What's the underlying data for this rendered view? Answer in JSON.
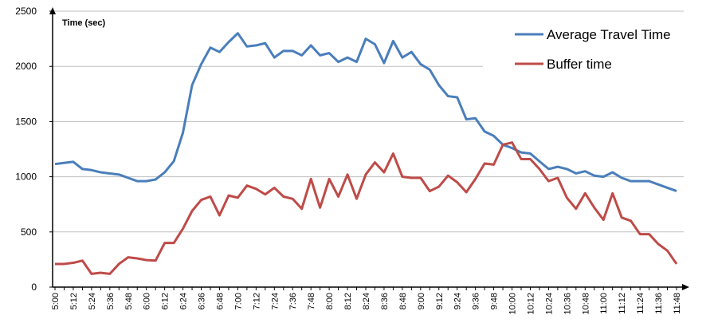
{
  "chart_data": {
    "type": "line",
    "y_label": "Time (sec)",
    "categories": [
      "5:00",
      null,
      "5:12",
      null,
      "5:24",
      null,
      "5:36",
      null,
      "5:48",
      null,
      "6:00",
      null,
      "6:12",
      null,
      "6:24",
      null,
      "6:36",
      null,
      "6:48",
      null,
      "7:00",
      null,
      "7:12",
      null,
      "7:24",
      null,
      "7:36",
      null,
      "7:48",
      null,
      "8:00",
      null,
      "8:12",
      null,
      "8:24",
      null,
      "8:36",
      null,
      "8:48",
      null,
      "9:00",
      null,
      "9:12",
      null,
      "9:24",
      null,
      "9:36",
      null,
      "9:48",
      null,
      "10:00",
      null,
      "10:12",
      null,
      "10:24",
      null,
      "10:36",
      null,
      "10:48",
      null,
      "11:00",
      null,
      "11:12",
      null,
      "11:24",
      null,
      "11:36",
      null,
      "11:48"
    ],
    "series": [
      {
        "name": "Average Travel Time",
        "color": "#4a7ebb",
        "values": [
          1115,
          1125,
          1135,
          1070,
          1060,
          1040,
          1030,
          1020,
          990,
          960,
          960,
          975,
          1040,
          1140,
          1400,
          1830,
          2020,
          2170,
          2130,
          2220,
          2300,
          2180,
          2190,
          2210,
          2080,
          2140,
          2140,
          2100,
          2190,
          2100,
          2120,
          2040,
          2080,
          2040,
          2250,
          2200,
          2030,
          2230,
          2080,
          2130,
          2020,
          1970,
          1830,
          1730,
          1720,
          1520,
          1530,
          1410,
          1370,
          1290,
          1260,
          1220,
          1210,
          1140,
          1070,
          1090,
          1070,
          1030,
          1050,
          1010,
          1000,
          1040,
          990,
          960,
          960,
          960,
          930,
          900,
          870
        ]
      },
      {
        "name": "Buffer time",
        "color": "#be4b48",
        "values": [
          210,
          210,
          220,
          240,
          120,
          130,
          120,
          210,
          270,
          260,
          245,
          240,
          400,
          400,
          530,
          690,
          790,
          820,
          650,
          830,
          810,
          920,
          890,
          840,
          900,
          820,
          800,
          710,
          980,
          720,
          980,
          820,
          1020,
          800,
          1020,
          1130,
          1040,
          1210,
          1000,
          990,
          990,
          870,
          910,
          1010,
          950,
          860,
          980,
          1120,
          1110,
          1290,
          1310,
          1160,
          1160,
          1070,
          960,
          990,
          810,
          710,
          850,
          720,
          610,
          850,
          630,
          600,
          480,
          480,
          390,
          330,
          210
        ]
      }
    ],
    "ylim": [
      0,
      2500
    ],
    "yticks": [
      0,
      500,
      1000,
      1500,
      2000,
      2500
    ],
    "grid": true,
    "legend": "top-right"
  }
}
